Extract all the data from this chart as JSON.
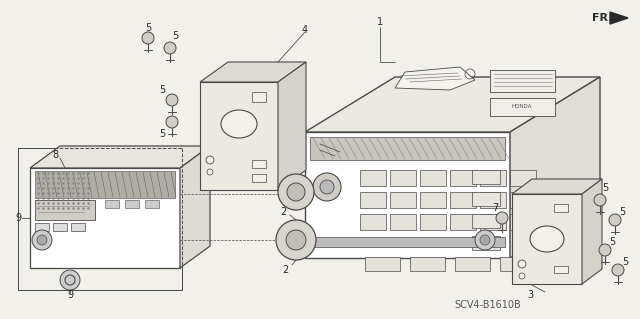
{
  "bg_color": "#f2f0eb",
  "line_color": "#4a4a4a",
  "diagram_code": "SCV4-B1610B",
  "white_color": "#ffffff",
  "gray_color": "#d8d5ce",
  "dark_color": "#2a2a2a"
}
